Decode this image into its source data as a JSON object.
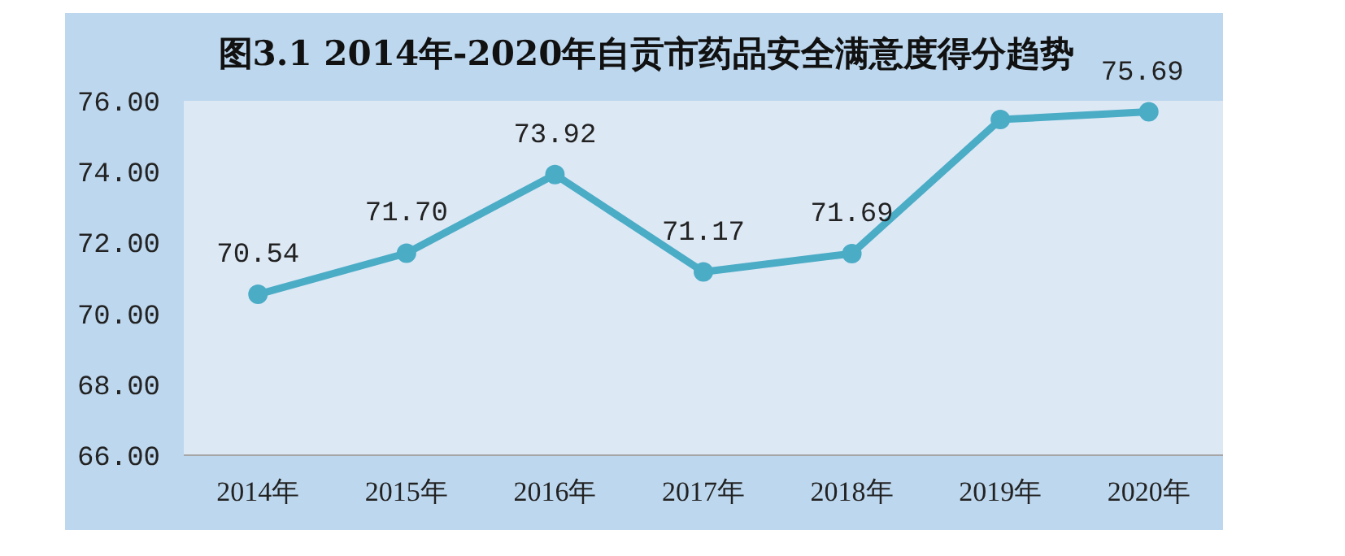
{
  "chart_data": {
    "type": "line",
    "title": "图3.1 2014年-2020年自贡市药品安全满意度得分趋势",
    "categories": [
      "2014年",
      "2015年",
      "2016年",
      "2017年",
      "2018年",
      "2019年",
      "2020年"
    ],
    "values": [
      70.54,
      71.7,
      73.92,
      71.17,
      71.69,
      75.47,
      75.69
    ],
    "value_labels": [
      "70.54",
      "71.70",
      "73.92",
      "71.17",
      "71.69",
      null,
      "75.69"
    ],
    "color": "#4bacc6",
    "marker": "circle",
    "ylim": [
      66,
      76
    ],
    "yticks": [
      {
        "value": 66,
        "label": "66.00"
      },
      {
        "value": 68,
        "label": "68.00"
      },
      {
        "value": 70,
        "label": "70.00"
      },
      {
        "value": 72,
        "label": "72.00"
      },
      {
        "value": 74,
        "label": "74.00"
      },
      {
        "value": 76,
        "label": "76.00"
      }
    ]
  }
}
